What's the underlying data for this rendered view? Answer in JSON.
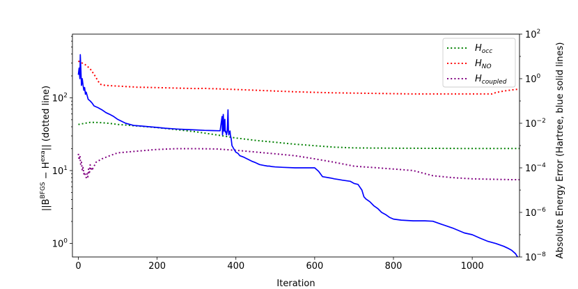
{
  "chart_data": {
    "type": "line",
    "xlabel": "Iteration",
    "ylabel_left": "||B^BFGS − H^exa|| (dotted line)",
    "ylabel_right": "Absolute Energy Error (Hartree, blue solid lines)",
    "xlim": [
      -15,
      1120
    ],
    "ylim_left": [
      0.65,
      750
    ],
    "ylim_right": [
      1e-08,
      100
    ],
    "left_scale": "log",
    "right_scale": "log",
    "x_ticks": [
      0,
      200,
      400,
      600,
      800,
      1000
    ],
    "x_tick_labels": [
      "0",
      "200",
      "400",
      "600",
      "800",
      "1000"
    ],
    "left_ticks": [
      1,
      10,
      100
    ],
    "left_tick_labels": [
      {
        "base": "10",
        "exp": "0"
      },
      {
        "base": "10",
        "exp": "1"
      },
      {
        "base": "10",
        "exp": "2"
      }
    ],
    "right_ticks": [
      1e-08,
      1e-06,
      0.0001,
      0.01,
      1,
      100
    ],
    "right_tick_labels": [
      {
        "base": "10",
        "exp": "−8"
      },
      {
        "base": "10",
        "exp": "−6"
      },
      {
        "base": "10",
        "exp": "−4"
      },
      {
        "base": "10",
        "exp": "−2"
      },
      {
        "base": "10",
        "exp": "0"
      },
      {
        "base": "10",
        "exp": "2"
      }
    ],
    "grid": false,
    "legend_position": "top-right",
    "series": [
      {
        "name": "H_occ",
        "legend": {
          "main": "H",
          "sub": "occ"
        },
        "axis": "left",
        "style": "dotted",
        "color": "#008000",
        "x": [
          0,
          10,
          20,
          30,
          40,
          60,
          80,
          100,
          150,
          200,
          250,
          300,
          350,
          400,
          450,
          500,
          550,
          600,
          650,
          700,
          800,
          900,
          1000,
          1100,
          1120
        ],
        "y": [
          43,
          44,
          45,
          46,
          46,
          45.5,
          44.5,
          43,
          41,
          39,
          36.5,
          34,
          31,
          28,
          26,
          24.5,
          23,
          22,
          21,
          20.5,
          20.3,
          20.2,
          20.1,
          20.1,
          20.1
        ]
      },
      {
        "name": "H_NO",
        "legend": {
          "main": "H",
          "sub": "NO"
        },
        "axis": "left",
        "style": "dotted",
        "color": "#ff0000",
        "x": [
          0,
          10,
          20,
          30,
          40,
          50,
          55,
          60,
          70,
          100,
          150,
          200,
          250,
          300,
          320,
          330,
          350,
          400,
          450,
          500,
          550,
          600,
          650,
          700,
          750,
          800,
          850,
          900,
          950,
          1000,
          1050,
          1060,
          1080,
          1100,
          1120
        ],
        "y": [
          320,
          300,
          280,
          250,
          210,
          170,
          155,
          150,
          148,
          145,
          140,
          138,
          136,
          134,
          135,
          134,
          133,
          130,
          127,
          124,
          121,
          119,
          117,
          116,
          115,
          114,
          113,
          113,
          113,
          113,
          113,
          118,
          124,
          128,
          132
        ]
      },
      {
        "name": "H_coupled",
        "legend": {
          "main": "H",
          "sub": "coupled"
        },
        "axis": "left",
        "style": "dotted",
        "color": "#800080",
        "x": [
          0,
          2,
          4,
          6,
          8,
          10,
          12,
          14,
          16,
          18,
          20,
          22,
          24,
          26,
          28,
          30,
          32,
          34,
          36,
          40,
          45,
          50,
          60,
          80,
          100,
          150,
          200,
          250,
          300,
          350,
          400,
          450,
          500,
          550,
          600,
          650,
          700,
          750,
          800,
          850,
          900,
          950,
          1000,
          1050,
          1100,
          1120
        ],
        "y": [
          17,
          14,
          16,
          12,
          13,
          10,
          11,
          9,
          9.5,
          8.5,
          8,
          9,
          8.2,
          10.5,
          9,
          12,
          10,
          11,
          10.5,
          11.5,
          13,
          13.5,
          14.5,
          16,
          17.5,
          18.5,
          19.5,
          20,
          20,
          19.8,
          19,
          18,
          17,
          16,
          14.5,
          13,
          11.5,
          11,
          10.5,
          10,
          8.5,
          8,
          7.7,
          7.6,
          7.5,
          7.5
        ]
      },
      {
        "name": "Energy error",
        "axis": "right",
        "style": "solid",
        "color": "#0000ff",
        "x": [
          0,
          2,
          4,
          5,
          6,
          8,
          10,
          12,
          14,
          16,
          18,
          20,
          25,
          30,
          35,
          40,
          50,
          60,
          70,
          80,
          90,
          100,
          120,
          140,
          160,
          180,
          200,
          220,
          250,
          280,
          300,
          320,
          340,
          360,
          365,
          366,
          367,
          368,
          370,
          372,
          373,
          374,
          376,
          378,
          380,
          381,
          382,
          383,
          384,
          385,
          386,
          388,
          390,
          395,
          400,
          405,
          410,
          420,
          440,
          450,
          460,
          470,
          480,
          485,
          490,
          500,
          520,
          550,
          580,
          600,
          610,
          620,
          640,
          650,
          660,
          670,
          690,
          700,
          710,
          720,
          725,
          730,
          740,
          750,
          760,
          770,
          780,
          790,
          800,
          820,
          850,
          880,
          900,
          920,
          950,
          980,
          1000,
          1020,
          1040,
          1060,
          1080,
          1090,
          1100,
          1110,
          1115
        ],
        "y": [
          1.5,
          3,
          1,
          12,
          4,
          0.5,
          1,
          0.5,
          0.3,
          0.4,
          0.2,
          0.25,
          0.12,
          0.1,
          0.08,
          0.06,
          0.05,
          0.04,
          0.03,
          0.025,
          0.02,
          0.015,
          0.01,
          0.008,
          0.0075,
          0.007,
          0.0065,
          0.006,
          0.0055,
          0.0052,
          0.005,
          0.0048,
          0.0047,
          0.0046,
          0.02,
          0.003,
          0.0045,
          0.025,
          0.0045,
          0.015,
          0.004,
          0.0045,
          0.003,
          0.0045,
          0.04,
          0.005,
          0.003,
          0.004,
          0.0042,
          0.0045,
          0.003,
          0.002,
          0.001,
          0.0007,
          0.0005,
          0.00045,
          0.00035,
          0.0003,
          0.0002,
          0.00017,
          0.00014,
          0.00013,
          0.00012,
          0.00012,
          0.000115,
          0.00011,
          0.000105,
          0.0001,
          0.0001,
          0.0001,
          7e-05,
          4e-05,
          3.5e-05,
          3.2e-05,
          3e-05,
          2.8e-05,
          2.5e-05,
          2e-05,
          1.8e-05,
          1e-05,
          5e-06,
          4e-06,
          3e-06,
          2e-06,
          1.5e-06,
          1e-06,
          8e-07,
          6e-07,
          5e-07,
          4.5e-07,
          4.2e-07,
          4.2e-07,
          4e-07,
          3e-07,
          2e-07,
          1.2e-07,
          1e-07,
          7e-08,
          5e-08,
          4e-08,
          3e-08,
          2.5e-08,
          2e-08,
          1.4e-08,
          1e-08
        ]
      }
    ]
  }
}
